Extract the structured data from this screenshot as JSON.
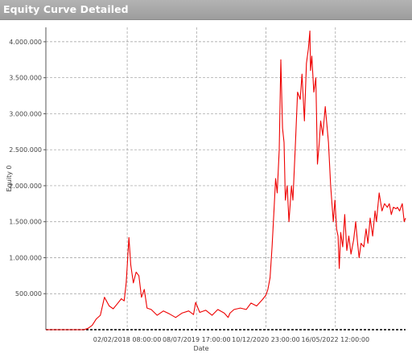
{
  "window": {
    "title": "Equity Curve Detailed"
  },
  "chart_data": {
    "type": "line",
    "title": "",
    "xlabel": "Date",
    "ylabel": "Equity 0",
    "ylim": [
      0,
      4200000
    ],
    "grid": true,
    "y_ticks": [
      {
        "value": 500000,
        "label": "500.000"
      },
      {
        "value": 1000000,
        "label": "1.000.000"
      },
      {
        "value": 1500000,
        "label": "1.500.000"
      },
      {
        "value": 2000000,
        "label": "2.000.000"
      },
      {
        "value": 2500000,
        "label": "2.500.000"
      },
      {
        "value": 3000000,
        "label": "3.000.000"
      },
      {
        "value": 3500000,
        "label": "3.500.000"
      },
      {
        "value": 4000000,
        "label": "4.000.000"
      }
    ],
    "x_ticks": [
      {
        "date": "2018-02-02",
        "label": "02/02/2018 08:00:00"
      },
      {
        "date": "2019-07-08",
        "label": "08/07/2019 17:00:00"
      },
      {
        "date": "2020-12-10",
        "label": "10/12/2020 23:00:00"
      },
      {
        "date": "2022-05-16",
        "label": "16/05/2022 12:00:00"
      }
    ],
    "series": [
      {
        "color": "#ee0000",
        "x": [
          "2016-06-01",
          "2016-11-01",
          "2017-03-15",
          "2017-04-15",
          "2017-05-15",
          "2017-06-15",
          "2017-07-15",
          "2017-08-15",
          "2017-09-20",
          "2017-10-20",
          "2017-11-20",
          "2017-12-20",
          "2018-01-10",
          "2018-01-25",
          "2018-02-03",
          "2018-02-15",
          "2018-03-01",
          "2018-03-20",
          "2018-04-10",
          "2018-05-01",
          "2018-05-20",
          "2018-06-10",
          "2018-07-01",
          "2018-08-01",
          "2018-09-15",
          "2018-11-01",
          "2018-12-15",
          "2019-02-01",
          "2019-03-20",
          "2019-05-10",
          "2019-06-15",
          "2019-07-01",
          "2019-08-01",
          "2019-09-15",
          "2019-11-01",
          "2019-12-15",
          "2020-02-01",
          "2020-03-01",
          "2020-03-15",
          "2020-04-15",
          "2020-06-01",
          "2020-07-15",
          "2020-08-20",
          "2020-10-01",
          "2020-11-15",
          "2020-12-10",
          "2020-12-25",
          "2021-01-10",
          "2021-01-25",
          "2021-02-10",
          "2021-02-21",
          "2021-03-05",
          "2021-03-20",
          "2021-04-01",
          "2021-04-14",
          "2021-04-25",
          "2021-05-05",
          "2021-05-19",
          "2021-06-01",
          "2021-06-20",
          "2021-07-01",
          "2021-07-20",
          "2021-08-05",
          "2021-08-25",
          "2021-09-07",
          "2021-09-25",
          "2021-10-10",
          "2021-10-25",
          "2021-11-05",
          "2021-11-10",
          "2021-11-20",
          "2021-12-05",
          "2021-12-20",
          "2022-01-01",
          "2022-01-15",
          "2022-01-25",
          "2022-02-10",
          "2022-03-01",
          "2022-03-25",
          "2022-04-10",
          "2022-04-30",
          "2022-05-12",
          "2022-05-25",
          "2022-06-05",
          "2022-06-14",
          "2022-06-25",
          "2022-07-10",
          "2022-07-25",
          "2022-08-10",
          "2022-08-25",
          "2022-09-10",
          "2022-09-30",
          "2022-10-15",
          "2022-10-30",
          "2022-11-10",
          "2022-11-25",
          "2022-12-15",
          "2023-01-01",
          "2023-01-15",
          "2023-02-01",
          "2023-02-20",
          "2023-03-10",
          "2023-03-20",
          "2023-04-10",
          "2023-05-01",
          "2023-05-20",
          "2023-06-10",
          "2023-06-25",
          "2023-07-10",
          "2023-07-25",
          "2023-08-15",
          "2023-08-25",
          "2023-09-10",
          "2023-09-30",
          "2023-10-15",
          "2023-10-25"
        ],
        "y": [
          0,
          0,
          0,
          20000,
          60000,
          150000,
          200000,
          450000,
          330000,
          290000,
          360000,
          430000,
          400000,
          650000,
          900000,
          1280000,
          900000,
          650000,
          800000,
          750000,
          450000,
          560000,
          300000,
          280000,
          200000,
          260000,
          220000,
          170000,
          230000,
          260000,
          210000,
          380000,
          240000,
          270000,
          200000,
          280000,
          230000,
          170000,
          230000,
          280000,
          300000,
          280000,
          370000,
          330000,
          420000,
          480000,
          560000,
          720000,
          1150000,
          1700000,
          2100000,
          1900000,
          2500000,
          3750000,
          2800000,
          2600000,
          1800000,
          2000000,
          1500000,
          2000000,
          1800000,
          2600000,
          3300000,
          3200000,
          3550000,
          2900000,
          3700000,
          3900000,
          4150000,
          3600000,
          3800000,
          3300000,
          3500000,
          2300000,
          2600000,
          2900000,
          2700000,
          3100000,
          2600000,
          2000000,
          1500000,
          1800000,
          1400000,
          1300000,
          850000,
          1350000,
          1150000,
          1600000,
          1100000,
          1300000,
          1050000,
          1250000,
          1500000,
          1200000,
          1000000,
          1200000,
          1150000,
          1400000,
          1200000,
          1550000,
          1300000,
          1650000,
          1500000,
          1900000,
          1650000,
          1750000,
          1700000,
          1750000,
          1600000,
          1700000,
          1680000,
          1700000,
          1650000,
          1750000,
          1500000,
          1550000
        ]
      }
    ]
  }
}
